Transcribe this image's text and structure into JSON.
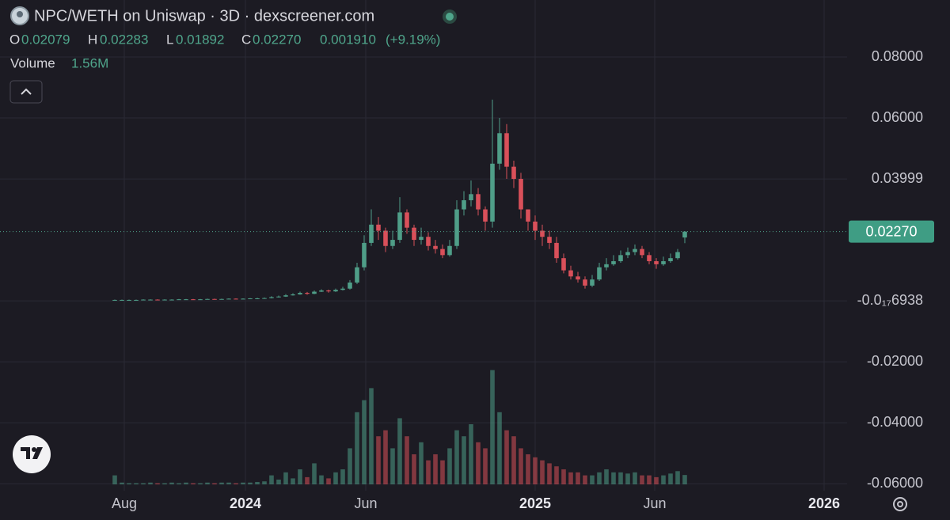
{
  "chart_data": {
    "type": "candlestick",
    "title": "NPC/WETH on Uniswap · 3D · dexscreener.com",
    "header": {
      "open_label": "O",
      "open": "0.02079",
      "high_label": "H",
      "high": "0.02283",
      "low_label": "L",
      "low": "0.01892",
      "close_label": "C",
      "close": "0.02270",
      "change": "0.001910",
      "change_pct": "(+9.19%)",
      "volume_label": "Volume",
      "volume": "1.56M"
    },
    "x": [
      0,
      9,
      18,
      27,
      36,
      45,
      54,
      63,
      72,
      81,
      90,
      99,
      108,
      117,
      126,
      135,
      144,
      153,
      162,
      171,
      180,
      189,
      198,
      207,
      216,
      225,
      234,
      243,
      252,
      261,
      270,
      279,
      288,
      297,
      306,
      315,
      324,
      333,
      342,
      351,
      360,
      369,
      378,
      387,
      396,
      405,
      414,
      423,
      432,
      441,
      450,
      459,
      468,
      477,
      486,
      495,
      504,
      513,
      522,
      531,
      540,
      549,
      558,
      567,
      576,
      585,
      594,
      603,
      612,
      621,
      630,
      639,
      648,
      657,
      666,
      675,
      684,
      693,
      702,
      711,
      720
    ],
    "open": [
      0.0003,
      0.0003,
      0.0003,
      0.0003,
      0.0003,
      0.0004,
      0.0004,
      0.0003,
      0.0004,
      0.0004,
      0.0005,
      0.0005,
      0.0004,
      0.0005,
      0.0006,
      0.0005,
      0.0006,
      0.0007,
      0.0006,
      0.0007,
      0.0008,
      0.0008,
      0.0009,
      0.0012,
      0.0014,
      0.0018,
      0.0021,
      0.0026,
      0.0023,
      0.003,
      0.0034,
      0.0031,
      0.0036,
      0.004,
      0.006,
      0.011,
      0.019,
      0.025,
      0.023,
      0.018,
      0.02,
      0.029,
      0.024,
      0.02,
      0.021,
      0.018,
      0.017,
      0.015,
      0.018,
      0.03,
      0.033,
      0.035,
      0.03,
      0.026,
      0.045,
      0.055,
      0.044,
      0.04,
      0.03,
      0.026,
      0.023,
      0.021,
      0.019,
      0.014,
      0.01,
      0.008,
      0.007,
      0.005,
      0.007,
      0.011,
      0.012,
      0.013,
      0.015,
      0.016,
      0.017,
      0.015,
      0.013,
      0.012,
      0.013,
      0.014,
      0.02079
    ],
    "high": [
      0.0004,
      0.0004,
      0.0004,
      0.0004,
      0.0005,
      0.0005,
      0.0005,
      0.0005,
      0.0005,
      0.0006,
      0.0006,
      0.0006,
      0.0006,
      0.0007,
      0.0007,
      0.0007,
      0.0008,
      0.0008,
      0.0008,
      0.0009,
      0.001,
      0.0011,
      0.0015,
      0.0017,
      0.0022,
      0.0025,
      0.003,
      0.0029,
      0.0034,
      0.0038,
      0.0037,
      0.004,
      0.0046,
      0.0068,
      0.0125,
      0.0215,
      0.03,
      0.0275,
      0.024,
      0.023,
      0.034,
      0.03,
      0.025,
      0.024,
      0.0225,
      0.02,
      0.0185,
      0.02,
      0.033,
      0.036,
      0.0395,
      0.037,
      0.031,
      0.066,
      0.06,
      0.058,
      0.046,
      0.042,
      0.03,
      0.028,
      0.025,
      0.023,
      0.021,
      0.0155,
      0.0115,
      0.0095,
      0.008,
      0.0085,
      0.0125,
      0.014,
      0.015,
      0.0165,
      0.0175,
      0.0185,
      0.018,
      0.016,
      0.014,
      0.0145,
      0.0155,
      0.017,
      0.02283
    ],
    "low": [
      0.0002,
      0.0002,
      0.0002,
      0.0002,
      0.0003,
      0.0003,
      0.0002,
      0.0003,
      0.0003,
      0.0004,
      0.0004,
      0.0003,
      0.0004,
      0.0004,
      0.0004,
      0.0005,
      0.0005,
      0.0005,
      0.0005,
      0.0006,
      0.0007,
      0.0007,
      0.0008,
      0.0011,
      0.0013,
      0.0017,
      0.002,
      0.002,
      0.0022,
      0.0029,
      0.0027,
      0.0029,
      0.0034,
      0.0037,
      0.0055,
      0.01,
      0.018,
      0.02,
      0.016,
      0.017,
      0.019,
      0.022,
      0.018,
      0.0185,
      0.0165,
      0.0155,
      0.014,
      0.0145,
      0.017,
      0.028,
      0.031,
      0.028,
      0.023,
      0.024,
      0.043,
      0.04,
      0.037,
      0.027,
      0.023,
      0.02,
      0.018,
      0.017,
      0.0125,
      0.009,
      0.007,
      0.006,
      0.004,
      0.0045,
      0.0065,
      0.01,
      0.0115,
      0.0125,
      0.014,
      0.015,
      0.014,
      0.012,
      0.0105,
      0.0115,
      0.0125,
      0.0135,
      0.01892
    ],
    "close": [
      0.0003,
      0.0003,
      0.0003,
      0.0003,
      0.0004,
      0.0004,
      0.0003,
      0.0004,
      0.0004,
      0.0005,
      0.0005,
      0.0004,
      0.0005,
      0.0006,
      0.0005,
      0.0006,
      0.0007,
      0.0006,
      0.0007,
      0.0008,
      0.0008,
      0.0009,
      0.0012,
      0.0014,
      0.0018,
      0.0021,
      0.0026,
      0.0023,
      0.003,
      0.0034,
      0.0031,
      0.0036,
      0.004,
      0.006,
      0.011,
      0.019,
      0.025,
      0.023,
      0.018,
      0.02,
      0.029,
      0.024,
      0.02,
      0.021,
      0.018,
      0.017,
      0.015,
      0.018,
      0.03,
      0.033,
      0.035,
      0.03,
      0.026,
      0.045,
      0.055,
      0.044,
      0.04,
      0.03,
      0.026,
      0.023,
      0.021,
      0.019,
      0.014,
      0.01,
      0.008,
      0.007,
      0.005,
      0.007,
      0.011,
      0.012,
      0.013,
      0.015,
      0.016,
      0.017,
      0.015,
      0.013,
      0.012,
      0.013,
      0.014,
      0.016,
      0.0227
    ],
    "volume": [
      1.5,
      0.3,
      0.2,
      0.2,
      0.2,
      0.3,
      0.2,
      0.2,
      0.3,
      0.2,
      0.3,
      0.2,
      0.2,
      0.3,
      0.2,
      0.3,
      0.3,
      0.2,
      0.3,
      0.3,
      0.4,
      0.5,
      1.5,
      0.8,
      2.0,
      1.0,
      2.5,
      1.2,
      3.5,
      1.5,
      1.0,
      2.0,
      2.5,
      6.0,
      12.0,
      14.0,
      16.0,
      8.0,
      9.0,
      6.0,
      11.0,
      8.0,
      5.0,
      7.0,
      4.0,
      5.0,
      4.0,
      6.0,
      9.0,
      8.0,
      10.0,
      7.0,
      6.0,
      19.0,
      12.0,
      9.0,
      8.0,
      6.0,
      5.0,
      4.5,
      4.0,
      3.5,
      3.0,
      2.5,
      2.0,
      2.0,
      1.5,
      1.5,
      2.0,
      2.5,
      2.0,
      2.0,
      1.8,
      2.0,
      1.5,
      1.5,
      1.2,
      1.5,
      1.8,
      2.2,
      1.56
    ],
    "up_color": "#4f9e88",
    "down_color": "#d9505a",
    "volume_ylim": [
      0,
      20
    ],
    "xlim": [
      -145,
      925
    ],
    "xticks": [
      {
        "value": 12,
        "label": "Aug"
      },
      {
        "value": 165,
        "label": "2024"
      },
      {
        "value": 317,
        "label": "Jun"
      },
      {
        "value": 531,
        "label": "2025"
      },
      {
        "value": 682,
        "label": "Jun"
      },
      {
        "value": 896,
        "label": "2026"
      }
    ],
    "ylim": [
      -0.0623,
      0.0987
    ],
    "yticks": [
      {
        "value": 0.08,
        "label": "0.08000"
      },
      {
        "value": 0.06,
        "label": "0.06000"
      },
      0.03999,
      {
        "value": -6.938e-18,
        "label": "-0.0₁₇6938"
      },
      {
        "value": -0.02,
        "label": "-0.02000"
      },
      {
        "value": -0.04,
        "label": "-0.04000"
      },
      {
        "value": -0.06,
        "label": "-0.06000"
      }
    ],
    "last_price": {
      "value": 0.0227,
      "label": "0.02270"
    },
    "grid": true
  }
}
